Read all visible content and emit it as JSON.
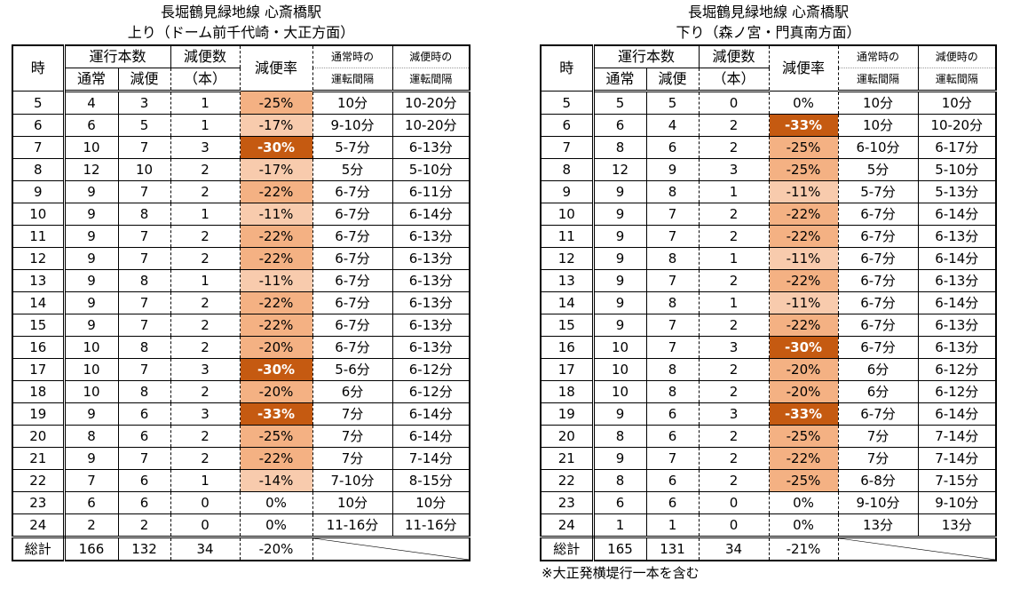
{
  "headers": {
    "hour": "時",
    "trains_group": "運行本数",
    "normal": "通常",
    "reduced": "減便",
    "reduction_count_line1": "減便数",
    "reduction_count_line2": "（本）",
    "reduction_rate": "減便率",
    "normal_interval_line1": "通常時の",
    "normal_interval_line2": "運転間隔",
    "reduced_interval_line1": "減便時の",
    "reduced_interval_line2": "運転間隔"
  },
  "colors": {
    "rate_high": "#C55A11",
    "rate_mid": "#F4B183",
    "rate_low": "#F8CBAD"
  },
  "tables": [
    {
      "title_line1": "長堀鶴見緑地線 心斎橋駅",
      "title_line2": "上り（ドーム前千代崎・大正方面）",
      "rows": [
        {
          "hour": "5",
          "normal": "4",
          "reduced": "3",
          "cut": "1",
          "rate": "-25%",
          "level": "mid",
          "normal_interval": "10分",
          "reduced_interval": "10-20分"
        },
        {
          "hour": "6",
          "normal": "6",
          "reduced": "5",
          "cut": "1",
          "rate": "-17%",
          "level": "low",
          "normal_interval": "9-10分",
          "reduced_interval": "10-20分"
        },
        {
          "hour": "7",
          "normal": "10",
          "reduced": "7",
          "cut": "3",
          "rate": "-30%",
          "level": "high",
          "normal_interval": "5-7分",
          "reduced_interval": "6-13分"
        },
        {
          "hour": "8",
          "normal": "12",
          "reduced": "10",
          "cut": "2",
          "rate": "-17%",
          "level": "low",
          "normal_interval": "5分",
          "reduced_interval": "5-10分"
        },
        {
          "hour": "9",
          "normal": "9",
          "reduced": "7",
          "cut": "2",
          "rate": "-22%",
          "level": "mid",
          "normal_interval": "6-7分",
          "reduced_interval": "6-11分"
        },
        {
          "hour": "10",
          "normal": "9",
          "reduced": "8",
          "cut": "1",
          "rate": "-11%",
          "level": "low",
          "normal_interval": "6-7分",
          "reduced_interval": "6-14分"
        },
        {
          "hour": "11",
          "normal": "9",
          "reduced": "7",
          "cut": "2",
          "rate": "-22%",
          "level": "mid",
          "normal_interval": "6-7分",
          "reduced_interval": "6-13分"
        },
        {
          "hour": "12",
          "normal": "9",
          "reduced": "7",
          "cut": "2",
          "rate": "-22%",
          "level": "mid",
          "normal_interval": "6-7分",
          "reduced_interval": "6-13分"
        },
        {
          "hour": "13",
          "normal": "9",
          "reduced": "8",
          "cut": "1",
          "rate": "-11%",
          "level": "low",
          "normal_interval": "6-7分",
          "reduced_interval": "6-13分"
        },
        {
          "hour": "14",
          "normal": "9",
          "reduced": "7",
          "cut": "2",
          "rate": "-22%",
          "level": "mid",
          "normal_interval": "6-7分",
          "reduced_interval": "6-13分"
        },
        {
          "hour": "15",
          "normal": "9",
          "reduced": "7",
          "cut": "2",
          "rate": "-22%",
          "level": "mid",
          "normal_interval": "6-7分",
          "reduced_interval": "6-13分"
        },
        {
          "hour": "16",
          "normal": "10",
          "reduced": "8",
          "cut": "2",
          "rate": "-20%",
          "level": "mid",
          "normal_interval": "6-7分",
          "reduced_interval": "6-13分"
        },
        {
          "hour": "17",
          "normal": "10",
          "reduced": "7",
          "cut": "3",
          "rate": "-30%",
          "level": "high",
          "normal_interval": "5-6分",
          "reduced_interval": "6-12分"
        },
        {
          "hour": "18",
          "normal": "10",
          "reduced": "8",
          "cut": "2",
          "rate": "-20%",
          "level": "mid",
          "normal_interval": "6分",
          "reduced_interval": "6-12分"
        },
        {
          "hour": "19",
          "normal": "9",
          "reduced": "6",
          "cut": "3",
          "rate": "-33%",
          "level": "high",
          "normal_interval": "7分",
          "reduced_interval": "6-14分"
        },
        {
          "hour": "20",
          "normal": "8",
          "reduced": "6",
          "cut": "2",
          "rate": "-25%",
          "level": "mid",
          "normal_interval": "7分",
          "reduced_interval": "6-14分"
        },
        {
          "hour": "21",
          "normal": "9",
          "reduced": "7",
          "cut": "2",
          "rate": "-22%",
          "level": "mid",
          "normal_interval": "7分",
          "reduced_interval": "7-14分"
        },
        {
          "hour": "22",
          "normal": "7",
          "reduced": "6",
          "cut": "1",
          "rate": "-14%",
          "level": "low",
          "normal_interval": "7-10分",
          "reduced_interval": "8-15分"
        },
        {
          "hour": "23",
          "normal": "6",
          "reduced": "6",
          "cut": "0",
          "rate": "0%",
          "level": "none",
          "normal_interval": "10分",
          "reduced_interval": "10分"
        },
        {
          "hour": "24",
          "normal": "2",
          "reduced": "2",
          "cut": "0",
          "rate": "0%",
          "level": "none",
          "normal_interval": "11-16分",
          "reduced_interval": "11-16分"
        }
      ],
      "total": {
        "label": "総計",
        "normal": "166",
        "reduced": "132",
        "cut": "34",
        "rate": "-20%"
      }
    },
    {
      "title_line1": "長堀鶴見緑地線 心斎橋駅",
      "title_line2": "下り（森ノ宮・門真南方面）",
      "rows": [
        {
          "hour": "5",
          "normal": "5",
          "reduced": "5",
          "cut": "0",
          "rate": "0%",
          "level": "none",
          "normal_interval": "10分",
          "reduced_interval": "10分"
        },
        {
          "hour": "6",
          "normal": "6",
          "reduced": "4",
          "cut": "2",
          "rate": "-33%",
          "level": "high",
          "normal_interval": "10分",
          "reduced_interval": "10-20分"
        },
        {
          "hour": "7",
          "normal": "8",
          "reduced": "6",
          "cut": "2",
          "rate": "-25%",
          "level": "mid",
          "normal_interval": "6-10分",
          "reduced_interval": "6-17分"
        },
        {
          "hour": "8",
          "normal": "12",
          "reduced": "9",
          "cut": "3",
          "rate": "-25%",
          "level": "mid",
          "normal_interval": "5分",
          "reduced_interval": "5-10分"
        },
        {
          "hour": "9",
          "normal": "9",
          "reduced": "8",
          "cut": "1",
          "rate": "-11%",
          "level": "low",
          "normal_interval": "5-7分",
          "reduced_interval": "5-13分"
        },
        {
          "hour": "10",
          "normal": "9",
          "reduced": "7",
          "cut": "2",
          "rate": "-22%",
          "level": "mid",
          "normal_interval": "6-7分",
          "reduced_interval": "6-14分"
        },
        {
          "hour": "11",
          "normal": "9",
          "reduced": "7",
          "cut": "2",
          "rate": "-22%",
          "level": "mid",
          "normal_interval": "6-7分",
          "reduced_interval": "6-13分"
        },
        {
          "hour": "12",
          "normal": "9",
          "reduced": "8",
          "cut": "1",
          "rate": "-11%",
          "level": "low",
          "normal_interval": "6-7分",
          "reduced_interval": "6-14分"
        },
        {
          "hour": "13",
          "normal": "9",
          "reduced": "7",
          "cut": "2",
          "rate": "-22%",
          "level": "mid",
          "normal_interval": "6-7分",
          "reduced_interval": "6-13分"
        },
        {
          "hour": "14",
          "normal": "9",
          "reduced": "8",
          "cut": "1",
          "rate": "-11%",
          "level": "low",
          "normal_interval": "6-7分",
          "reduced_interval": "6-14分"
        },
        {
          "hour": "15",
          "normal": "9",
          "reduced": "7",
          "cut": "2",
          "rate": "-22%",
          "level": "mid",
          "normal_interval": "6-7分",
          "reduced_interval": "6-13分"
        },
        {
          "hour": "16",
          "normal": "10",
          "reduced": "7",
          "cut": "3",
          "rate": "-30%",
          "level": "high",
          "normal_interval": "6-7分",
          "reduced_interval": "6-13分"
        },
        {
          "hour": "17",
          "normal": "10",
          "reduced": "8",
          "cut": "2",
          "rate": "-20%",
          "level": "mid",
          "normal_interval": "6分",
          "reduced_interval": "6-12分"
        },
        {
          "hour": "18",
          "normal": "10",
          "reduced": "8",
          "cut": "2",
          "rate": "-20%",
          "level": "mid",
          "normal_interval": "6分",
          "reduced_interval": "6-12分"
        },
        {
          "hour": "19",
          "normal": "9",
          "reduced": "6",
          "cut": "3",
          "rate": "-33%",
          "level": "high",
          "normal_interval": "6-7分",
          "reduced_interval": "6-14分"
        },
        {
          "hour": "20",
          "normal": "8",
          "reduced": "6",
          "cut": "2",
          "rate": "-25%",
          "level": "mid",
          "normal_interval": "7分",
          "reduced_interval": "7-14分"
        },
        {
          "hour": "21",
          "normal": "9",
          "reduced": "7",
          "cut": "2",
          "rate": "-22%",
          "level": "mid",
          "normal_interval": "7分",
          "reduced_interval": "7-14分"
        },
        {
          "hour": "22",
          "normal": "8",
          "reduced": "6",
          "cut": "2",
          "rate": "-25%",
          "level": "mid",
          "normal_interval": "6-8分",
          "reduced_interval": "7-15分"
        },
        {
          "hour": "23",
          "normal": "6",
          "reduced": "6",
          "cut": "0",
          "rate": "0%",
          "level": "none",
          "normal_interval": "9-10分",
          "reduced_interval": "9-10分"
        },
        {
          "hour": "24",
          "normal": "1",
          "reduced": "1",
          "cut": "0",
          "rate": "0%",
          "level": "none",
          "normal_interval": "13分",
          "reduced_interval": "13分"
        }
      ],
      "total": {
        "label": "総計",
        "normal": "165",
        "reduced": "131",
        "cut": "34",
        "rate": "-21%"
      },
      "note": "※大正発横堤行一本を含む"
    }
  ]
}
